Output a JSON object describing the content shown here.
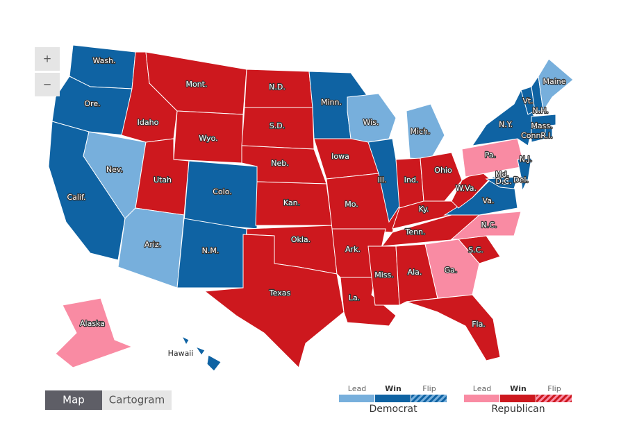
{
  "zoom": {
    "in": "+",
    "out": "−"
  },
  "view_toggle": {
    "options": [
      "Map",
      "Cartogram"
    ],
    "active": 0
  },
  "legend": {
    "items": [
      "Lead",
      "Win",
      "Flip"
    ],
    "groups": [
      {
        "name": "Democrat",
        "party": "dem",
        "colors": {
          "lead": "#77afdc",
          "win": "#0f63a3"
        }
      },
      {
        "name": "Republican",
        "party": "rep",
        "colors": {
          "lead": "#f98ba3",
          "win": "#cd181e"
        }
      }
    ]
  },
  "states": [
    {
      "label": "Wash.",
      "party": "dem",
      "status": "win"
    },
    {
      "label": "Ore.",
      "party": "dem",
      "status": "win"
    },
    {
      "label": "Calif.",
      "party": "dem",
      "status": "win"
    },
    {
      "label": "Nev.",
      "party": "dem",
      "status": "lead"
    },
    {
      "label": "Idaho",
      "party": "rep",
      "status": "win"
    },
    {
      "label": "Mont.",
      "party": "rep",
      "status": "win"
    },
    {
      "label": "Wyo.",
      "party": "rep",
      "status": "win"
    },
    {
      "label": "Utah",
      "party": "rep",
      "status": "win"
    },
    {
      "label": "Ariz.",
      "party": "dem",
      "status": "lead"
    },
    {
      "label": "Colo.",
      "party": "dem",
      "status": "win"
    },
    {
      "label": "N.M.",
      "party": "dem",
      "status": "win"
    },
    {
      "label": "N.D.",
      "party": "rep",
      "status": "win"
    },
    {
      "label": "S.D.",
      "party": "rep",
      "status": "win"
    },
    {
      "label": "Neb.",
      "party": "rep",
      "status": "win"
    },
    {
      "label": "Kan.",
      "party": "rep",
      "status": "win"
    },
    {
      "label": "Okla.",
      "party": "rep",
      "status": "win"
    },
    {
      "label": "Texas",
      "party": "rep",
      "status": "win"
    },
    {
      "label": "Minn.",
      "party": "dem",
      "status": "win"
    },
    {
      "label": "Iowa",
      "party": "rep",
      "status": "win"
    },
    {
      "label": "Mo.",
      "party": "rep",
      "status": "win"
    },
    {
      "label": "Ark.",
      "party": "rep",
      "status": "win"
    },
    {
      "label": "La.",
      "party": "rep",
      "status": "win"
    },
    {
      "label": "Wis.",
      "party": "dem",
      "status": "lead"
    },
    {
      "label": "Ill.",
      "party": "dem",
      "status": "win"
    },
    {
      "label": "Mich.",
      "party": "dem",
      "status": "lead"
    },
    {
      "label": "Ind.",
      "party": "rep",
      "status": "win"
    },
    {
      "label": "Ohio",
      "party": "rep",
      "status": "win"
    },
    {
      "label": "Ky.",
      "party": "rep",
      "status": "win"
    },
    {
      "label": "Tenn.",
      "party": "rep",
      "status": "win"
    },
    {
      "label": "Miss.",
      "party": "rep",
      "status": "win"
    },
    {
      "label": "Ala.",
      "party": "rep",
      "status": "win"
    },
    {
      "label": "Ga.",
      "party": "rep",
      "status": "lead"
    },
    {
      "label": "Fla.",
      "party": "rep",
      "status": "win"
    },
    {
      "label": "S.C.",
      "party": "rep",
      "status": "win"
    },
    {
      "label": "N.C.",
      "party": "rep",
      "status": "lead"
    },
    {
      "label": "Va.",
      "party": "dem",
      "status": "win"
    },
    {
      "label": "W.Va.",
      "party": "rep",
      "status": "win"
    },
    {
      "label": "Pa.",
      "party": "rep",
      "status": "lead"
    },
    {
      "label": "N.Y.",
      "party": "dem",
      "status": "win"
    },
    {
      "label": "N.J.",
      "party": "dem",
      "status": "win"
    },
    {
      "label": "Md.",
      "party": "dem",
      "status": "win"
    },
    {
      "label": "D.C.",
      "party": "dem",
      "status": "win"
    },
    {
      "label": "Del.",
      "party": "dem",
      "status": "win"
    },
    {
      "label": "Vt.",
      "party": "dem",
      "status": "win"
    },
    {
      "label": "N.H.",
      "party": "dem",
      "status": "win"
    },
    {
      "label": "Maine",
      "party": "dem",
      "status": "lead"
    },
    {
      "label": "Mass.",
      "party": "dem",
      "status": "win"
    },
    {
      "label": "Conn.",
      "party": "dem",
      "status": "win"
    },
    {
      "label": "R.I.",
      "party": "dem",
      "status": "win"
    },
    {
      "label": "Alaska",
      "party": "rep",
      "status": "lead"
    },
    {
      "label": "Hawaii",
      "party": "dem",
      "status": "win"
    }
  ]
}
